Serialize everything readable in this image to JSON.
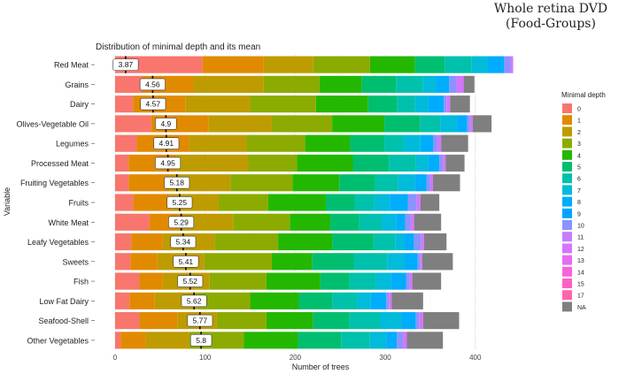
{
  "header": {
    "line1": "Whole retina DVD",
    "line2": "(Food-Groups)"
  },
  "chart_data": {
    "type": "bar",
    "orientation": "horizontal",
    "stacked": true,
    "title": "Distribution of minimal depth and its mean",
    "xlabel": "Number of trees",
    "ylabel": "Variable",
    "xlim": [
      0,
      462
    ],
    "xticks": [
      0,
      100,
      200,
      300,
      400
    ],
    "grid": true,
    "legend_title": "Minimal depth",
    "legend_position": "right",
    "categories": [
      "Red Meat",
      "Grains",
      "Dairy",
      "Olives-Vegetable Oil",
      "Legumes",
      "Processed Meat",
      "Fruiting Vegetables",
      "Fruits",
      "White Meat",
      "Leafy Vegetables",
      "Sweets",
      "Fish",
      "Low Fat Dairy",
      "Seafood-Shell",
      "Other Vegetables"
    ],
    "mean_depth": [
      3.87,
      4.56,
      4.57,
      4.9,
      4.91,
      4.95,
      5.18,
      5.25,
      5.29,
      5.34,
      5.41,
      5.52,
      5.62,
      5.77,
      5.8
    ],
    "mean_labels": [
      "3.87",
      "4.56",
      "4.57",
      "4.9",
      "4.91",
      "4.95",
      "5.18",
      "5.25",
      "5.29",
      "5.34",
      "5.41",
      "5.52",
      "5.62",
      "5.77",
      "5.8"
    ],
    "series": [
      {
        "name": "0",
        "color": "#F8766D",
        "values": [
          97,
          30,
          20,
          40,
          24,
          15,
          15,
          20,
          38,
          18,
          17,
          27,
          16,
          27,
          6
        ]
      },
      {
        "name": "1",
        "color": "#E18A00",
        "values": [
          68,
          57,
          58,
          64,
          58,
          53,
          45,
          40,
          33,
          35,
          30,
          26,
          28,
          42,
          28
        ]
      },
      {
        "name": "2",
        "color": "#BE9C00",
        "values": [
          55,
          78,
          72,
          70,
          64,
          80,
          68,
          55,
          60,
          58,
          52,
          52,
          48,
          44,
          48
        ]
      },
      {
        "name": "3",
        "color": "#8CAB00",
        "values": [
          63,
          62,
          73,
          67,
          65,
          54,
          69,
          55,
          63,
          70,
          75,
          63,
          58,
          55,
          61
        ]
      },
      {
        "name": "4",
        "color": "#24B700",
        "values": [
          50,
          47,
          58,
          58,
          50,
          62,
          52,
          64,
          45,
          60,
          45,
          60,
          54,
          52,
          60
        ]
      },
      {
        "name": "5",
        "color": "#00BE70",
        "values": [
          33,
          38,
          32,
          40,
          38,
          40,
          40,
          32,
          32,
          46,
          46,
          32,
          37,
          40,
          48
        ]
      },
      {
        "name": "6",
        "color": "#00C1AB",
        "values": [
          30,
          30,
          20,
          22,
          21,
          30,
          25,
          22,
          25,
          24,
          37,
          30,
          28,
          34,
          32
        ]
      },
      {
        "name": "7",
        "color": "#00BBDA",
        "values": [
          18,
          14,
          15,
          19,
          19,
          14,
          19,
          17,
          16,
          10,
          19,
          16,
          15,
          24,
          18
        ]
      },
      {
        "name": "8",
        "color": "#00ACFC",
        "values": [
          18,
          15,
          17,
          11,
          14,
          12,
          13,
          20,
          10,
          11,
          15,
          17,
          17,
          16,
          12
        ]
      },
      {
        "name": "9",
        "color": "#8B93FF",
        "values": [
          7,
          8,
          3,
          3,
          5,
          4,
          4,
          10,
          6,
          8,
          3,
          4,
          3,
          4,
          7
        ]
      },
      {
        "name": "10",
        "color": "#D575FE",
        "values": [
          3,
          8,
          4,
          3,
          4,
          3,
          3,
          4,
          4,
          3,
          2,
          3,
          3,
          4,
          4
        ]
      },
      {
        "name": "11",
        "color": "#F962DD",
        "values": [
          0,
          0,
          0,
          0,
          0,
          0,
          0,
          0,
          0,
          0,
          0,
          0,
          0,
          0,
          0
        ]
      },
      {
        "name": "12",
        "color": "#FF65AC",
        "values": [
          0,
          0,
          0,
          0,
          0,
          0,
          0,
          0,
          0,
          0,
          0,
          0,
          0,
          0,
          0
        ]
      },
      {
        "name": "13",
        "color": "#C77CFF",
        "values": [
          0,
          0,
          0,
          0,
          0,
          0,
          0,
          0,
          0,
          0,
          0,
          0,
          0,
          0,
          0
        ]
      },
      {
        "name": "14",
        "color": "#F8766D",
        "values": [
          0,
          0,
          0,
          0,
          0,
          0,
          0,
          0,
          0,
          0,
          0,
          0,
          0,
          0,
          0
        ]
      },
      {
        "name": "15",
        "color": "#FF61C3",
        "values": [
          0,
          0,
          0,
          0,
          0,
          0,
          0,
          0,
          0,
          0,
          0,
          0,
          0,
          0,
          0
        ]
      },
      {
        "name": "17",
        "color": "#F564E3",
        "values": [
          0,
          0,
          0,
          0,
          0,
          0,
          0,
          0,
          0,
          0,
          0,
          0,
          0,
          0,
          0
        ]
      },
      {
        "name": "NA",
        "color": "#7F7F7F",
        "values": [
          0,
          12,
          22,
          21,
          30,
          21,
          30,
          21,
          30,
          25,
          34,
          32,
          35,
          40,
          40
        ]
      }
    ],
    "legend_colors": [
      "#F8766D",
      "#E18A00",
      "#BE9C00",
      "#8CAB00",
      "#24B700",
      "#00BE70",
      "#00C1AB",
      "#00BBDA",
      "#00ACFC",
      "#00A5FF",
      "#8B93FF",
      "#C77CFF",
      "#D575FE",
      "#E76BF3",
      "#F962DD",
      "#FF61C3",
      "#FF65AC",
      "#7F7F7F"
    ],
    "legend_labels": [
      "0",
      "1",
      "2",
      "3",
      "4",
      "5",
      "6",
      "7",
      "8",
      "9",
      "10",
      "11",
      "12",
      "13",
      "14",
      "15",
      "17",
      "NA"
    ]
  }
}
